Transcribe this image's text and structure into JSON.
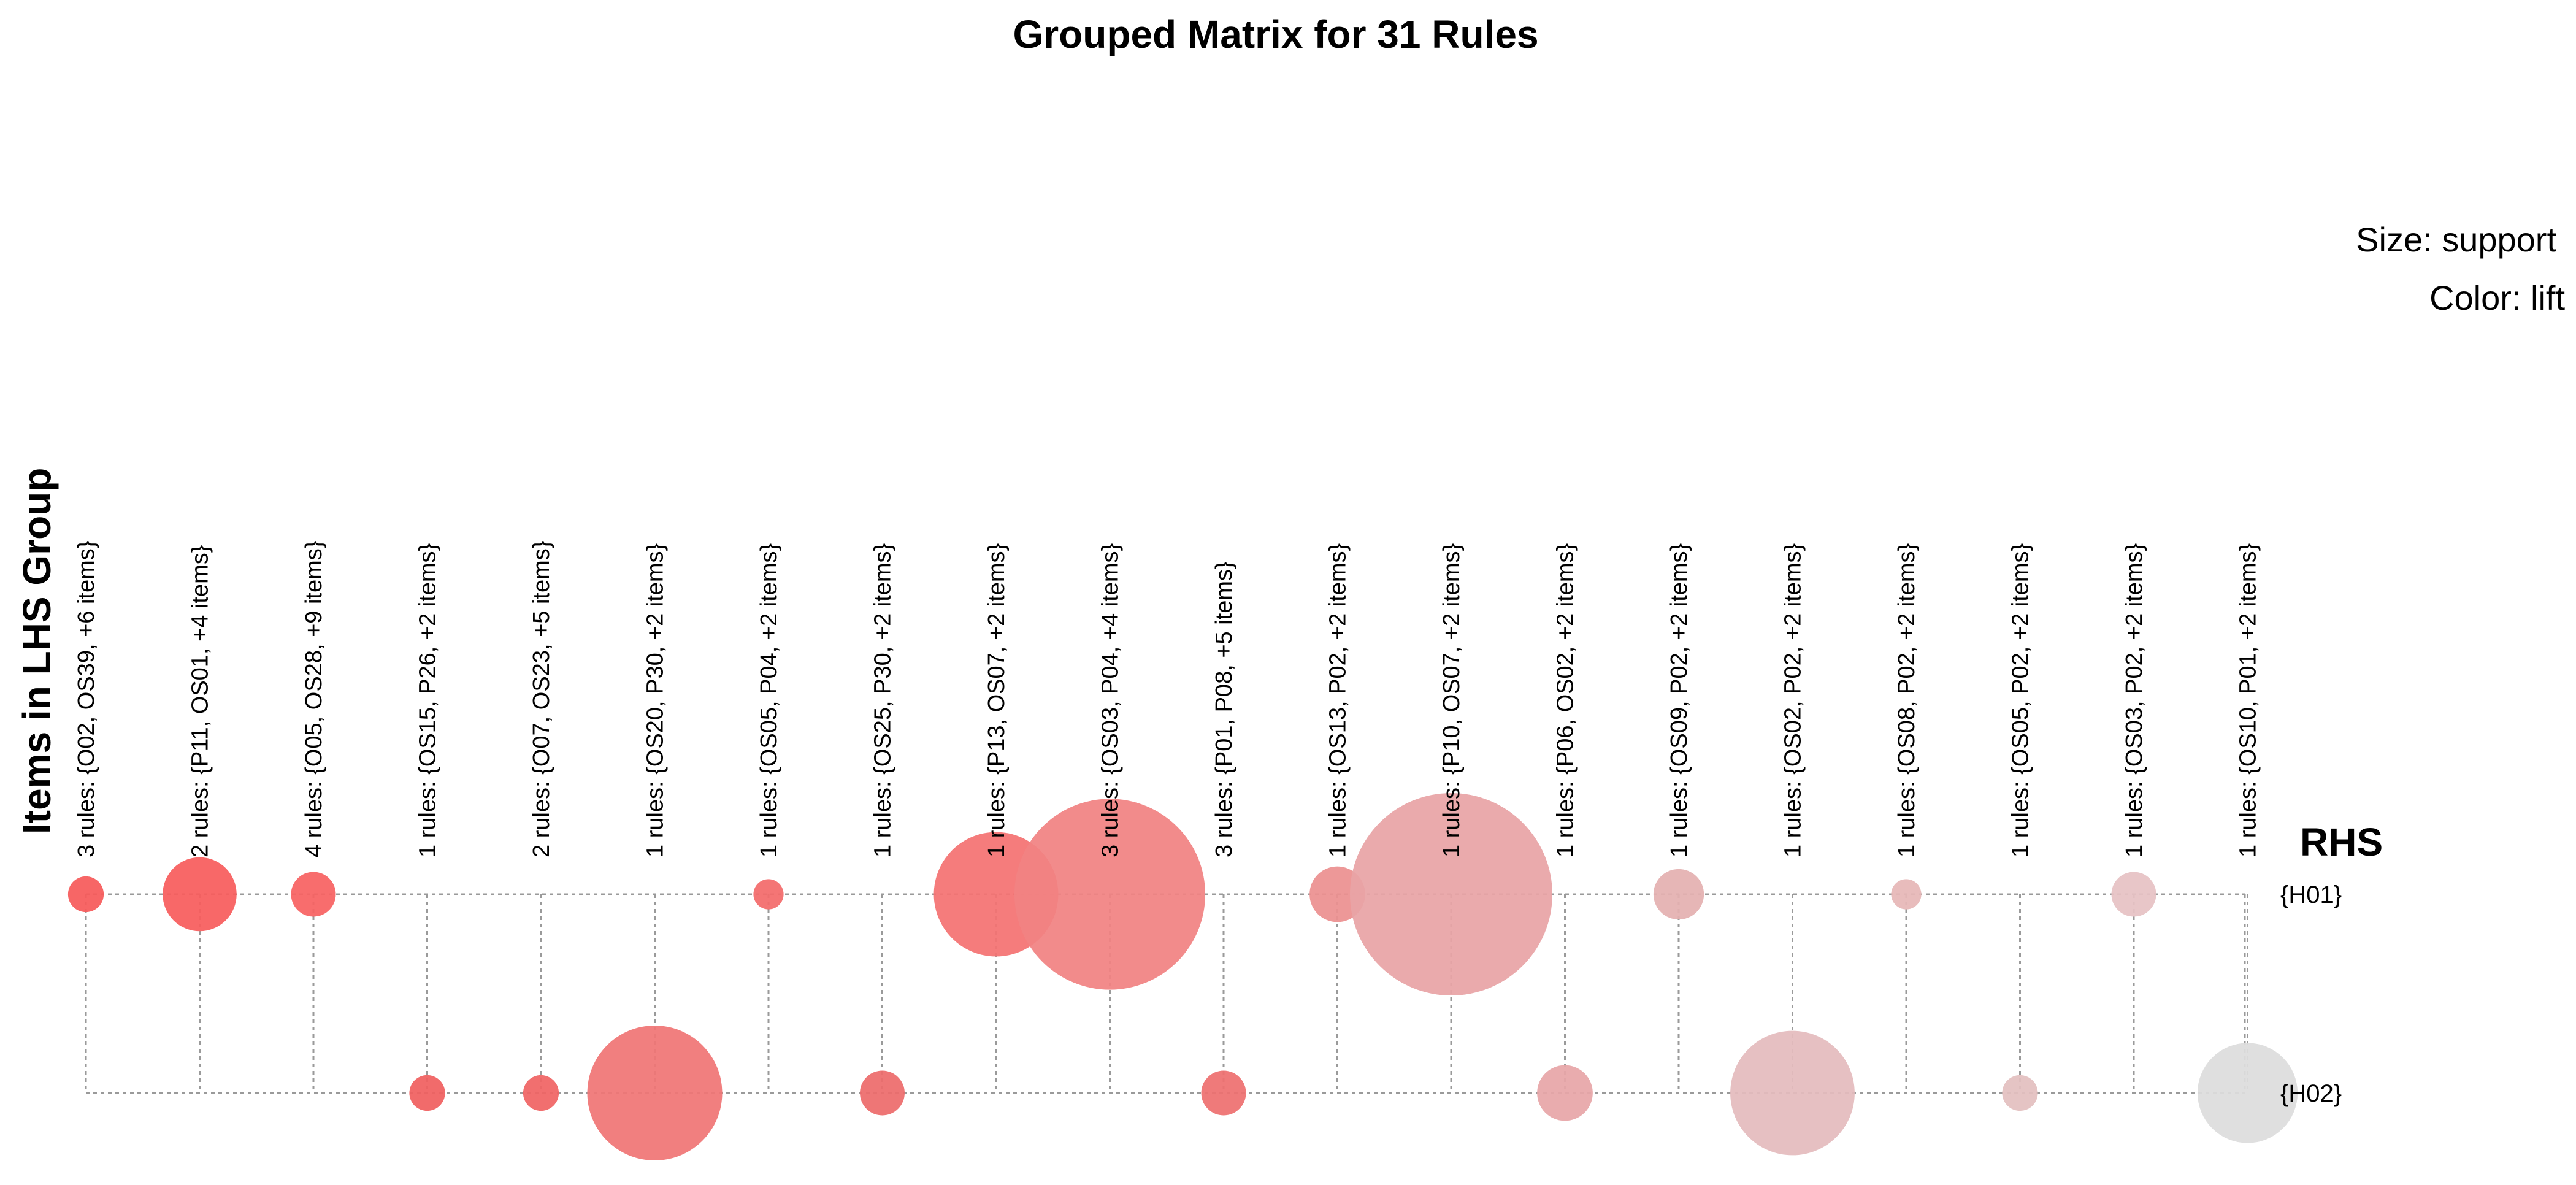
{
  "chart_data": {
    "type": "grouped-matrix-bubble",
    "title": "Grouped Matrix for 31 Rules",
    "legend": {
      "size_label": "Size: support",
      "color_label": "Color: lift"
    },
    "y_axis_label": "Items in LHS Group",
    "rhs_label": "RHS",
    "rhs_items": [
      "{H01}",
      "{H02}"
    ],
    "lhs_groups": [
      "3 rules: {O02, OS39, +6 items}",
      "2 rules: {P11, OS01, +4 items}",
      "4 rules: {O05, OS28, +9 items}",
      "1 rules: {OS15, P26, +2 items}",
      "2 rules: {O07, OS23, +5 items}",
      "1 rules: {OS20, P30, +2 items}",
      "1 rules: {OS05, P04, +2 items}",
      "1 rules: {OS25, P30, +2 items}",
      "1 rules: {P13, OS07, +2 items}",
      "3 rules: {OS03, P04, +4 items}",
      "3 rules: {P01, P08, +5 items}",
      "1 rules: {OS13, P02, +2 items}",
      "1 rules: {P10, OS07, +2 items}",
      "1 rules: {P06, OS02, +2 items}",
      "1 rules: {OS09, P02, +2 items}",
      "1 rules: {OS02, P02, +2 items}",
      "1 rules: {OS08, P02, +2 items}",
      "1 rules: {OS05, P02, +2 items}",
      "1 rules: {OS03, P02, +2 items}",
      "1 rules: {OS10, P01, +2 items}"
    ],
    "bubbles": [
      {
        "lhs": 0,
        "rhs": 0,
        "support": 0.07,
        "color": "#f65a5a"
      },
      {
        "lhs": 1,
        "rhs": 0,
        "support": 0.3,
        "color": "#f75c5c"
      },
      {
        "lhs": 2,
        "rhs": 0,
        "support": 0.11,
        "color": "#f76262"
      },
      {
        "lhs": 6,
        "rhs": 0,
        "support": 0.05,
        "color": "#f36b6b"
      },
      {
        "lhs": 8,
        "rhs": 0,
        "support": 0.85,
        "color": "#f47272"
      },
      {
        "lhs": 9,
        "rhs": 0,
        "support": 2.0,
        "color": "#f18282"
      },
      {
        "lhs": 11,
        "rhs": 0,
        "support": 0.17,
        "color": "#ec9090"
      },
      {
        "lhs": 12,
        "rhs": 0,
        "support": 2.25,
        "color": "#e8a4a6"
      },
      {
        "lhs": 14,
        "rhs": 0,
        "support": 0.14,
        "color": "#e4b0b0"
      },
      {
        "lhs": 16,
        "rhs": 0,
        "support": 0.05,
        "color": "#e6b7b7"
      },
      {
        "lhs": 18,
        "rhs": 0,
        "support": 0.11,
        "color": "#e6c2c4"
      },
      {
        "lhs": 3,
        "rhs": 1,
        "support": 0.07,
        "color": "#f06060"
      },
      {
        "lhs": 4,
        "rhs": 1,
        "support": 0.07,
        "color": "#f06464"
      },
      {
        "lhs": 5,
        "rhs": 1,
        "support": 1.0,
        "color": "#f07575"
      },
      {
        "lhs": 7,
        "rhs": 1,
        "support": 0.11,
        "color": "#ed6c6c"
      },
      {
        "lhs": 10,
        "rhs": 1,
        "support": 0.11,
        "color": "#ee7070"
      },
      {
        "lhs": 13,
        "rhs": 1,
        "support": 0.17,
        "color": "#e7a6a8"
      },
      {
        "lhs": 15,
        "rhs": 1,
        "support": 0.85,
        "color": "#e4bbbd"
      },
      {
        "lhs": 17,
        "rhs": 1,
        "support": 0.07,
        "color": "#e3c0c0"
      },
      {
        "lhs": 19,
        "rhs": 1,
        "support": 0.55,
        "color": "#dddddd"
      }
    ]
  }
}
